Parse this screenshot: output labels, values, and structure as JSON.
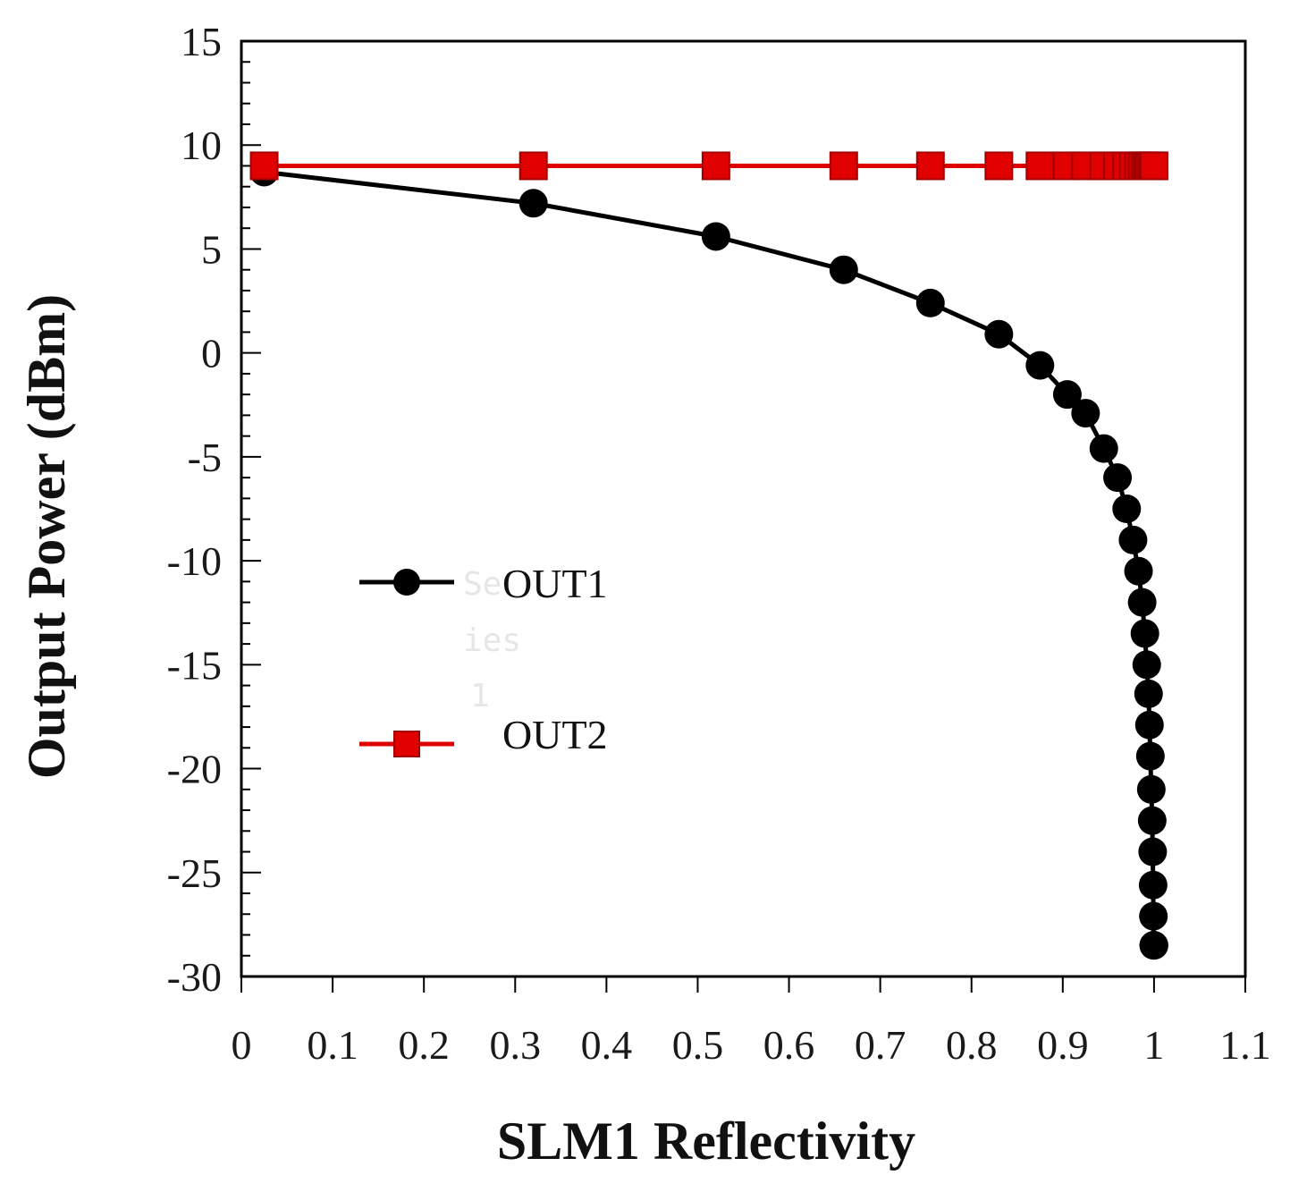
{
  "chart_data": {
    "type": "line",
    "title": "",
    "xlabel": "SLM1 Reflectivity",
    "ylabel": "Output Power (dBm)",
    "xlim": [
      0,
      1.1
    ],
    "ylim": [
      -30,
      15
    ],
    "xticks": [
      "0",
      "0.1",
      "0.2",
      "0.3",
      "0.4",
      "0.5",
      "0.6",
      "0.7",
      "0.8",
      "0.9",
      "1",
      "1.1"
    ],
    "yticks": [
      "15",
      "10",
      "5",
      "0",
      "-5",
      "-10",
      "-15",
      "-20",
      "-25",
      "-30"
    ],
    "legend_position": "center-left",
    "placeholder_label": [
      "Se",
      "ies",
      "1"
    ],
    "series": [
      {
        "name": "OUT1",
        "color": "#000000",
        "marker": "circle",
        "x": [
          0.025,
          0.32,
          0.52,
          0.66,
          0.755,
          0.83,
          0.875,
          0.905,
          0.925,
          0.945,
          0.96,
          0.97,
          0.977,
          0.983,
          0.987,
          0.99,
          0.992,
          0.994,
          0.995,
          0.996,
          0.997,
          0.998,
          0.9985,
          0.999,
          0.9993,
          0.9996,
          0.9998,
          1.0
        ],
        "values": [
          8.7,
          7.2,
          5.6,
          4.0,
          2.4,
          0.9,
          -0.6,
          -2.0,
          -2.9,
          -4.6,
          -6.0,
          -7.5,
          -9.0,
          -10.5,
          -12.0,
          -13.5,
          -15.0,
          -16.4,
          -17.9,
          -19.4,
          -21.0,
          -22.5,
          -24.0,
          -25.6,
          -27.1,
          -28.5,
          -28.5,
          -28.5
        ]
      },
      {
        "name": "OUT2",
        "color": "#e00000",
        "marker": "square",
        "x": [
          0.025,
          0.32,
          0.52,
          0.66,
          0.755,
          0.83,
          0.875,
          0.905,
          0.925,
          0.945,
          0.96,
          0.97,
          0.977,
          0.983,
          0.987,
          0.99,
          0.992,
          0.994,
          0.996,
          0.998,
          1.0
        ],
        "values": [
          9,
          9,
          9,
          9,
          9,
          9,
          9,
          9,
          9,
          9,
          9,
          9,
          9,
          9,
          9,
          9,
          9,
          9,
          9,
          9,
          9
        ]
      }
    ]
  }
}
